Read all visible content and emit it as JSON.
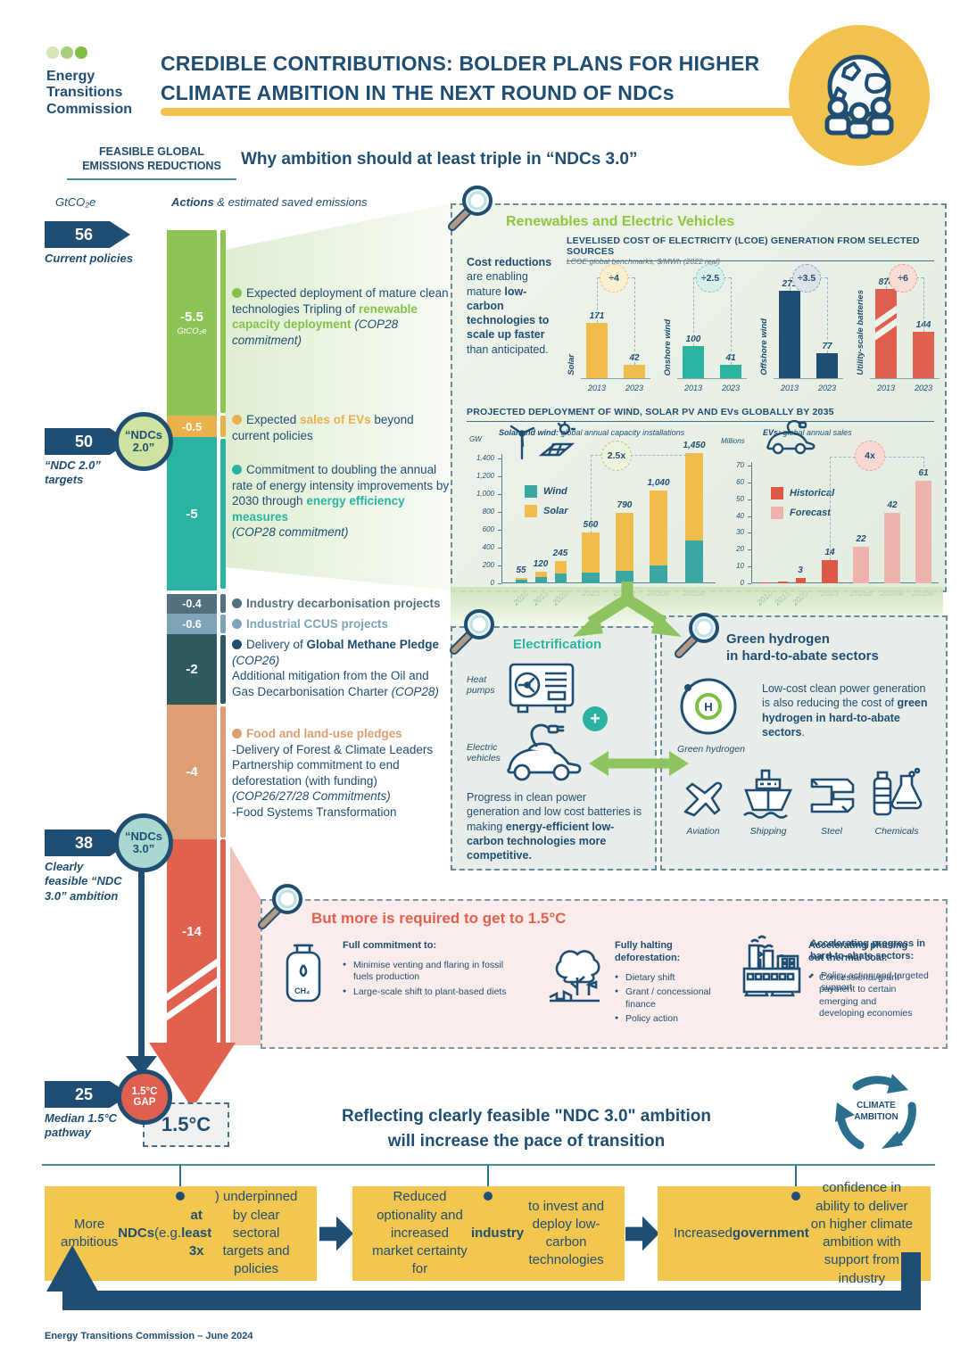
{
  "colors": {
    "navy": "#1f4e72",
    "green": "#84c14b",
    "teal": "#2bb3a2",
    "orange": "#eab04c",
    "slate": "#53707f",
    "bluegray": "#7ea5b7",
    "darkteal": "#2e5a5e",
    "salmon": "#dd9e74",
    "red": "#e2604e",
    "yellow": "#f2c24e"
  },
  "header": {
    "org_lines": [
      "Energy",
      "Transitions",
      "Commission"
    ],
    "title_lines": [
      "CREDIBLE CONTRIBUTIONS: BOLDER PLANS FOR HIGHER",
      "CLIMATE AMBITION IN THE NEXT ROUND OF NDCs"
    ]
  },
  "left_rail": {
    "kicker_lines": [
      "FEASIBLE GLOBAL",
      "EMISSIONS REDUCTIONS"
    ],
    "axis_label": "GtCO₂e",
    "actions_header": [
      {
        "t": "Actions",
        "b": 1,
        "i": 1
      },
      {
        "t": " & estimated saved emissions",
        "i": 1
      }
    ],
    "why_heading": "Why ambition should at least triple in “NDCs 3.0”"
  },
  "waterfall": {
    "chips": [
      {
        "value": "56",
        "label": "Current policies"
      },
      {
        "value": "50",
        "label": "“NDC 2.0” targets"
      },
      {
        "value": "38",
        "label": "Clearly feasible “NDC 3.0” ambition"
      },
      {
        "value": "25",
        "label": "Median 1.5°C pathway"
      }
    ],
    "badges": [
      {
        "line1": "“NDCs",
        "line2": "2.0”",
        "bg": "#cfe3a0"
      },
      {
        "line1": "“NDCs",
        "line2": "3.0”",
        "bg": "#a8d8cf"
      },
      {
        "line1": "1.5°C",
        "line2": "GAP",
        "bg": "#e0604f"
      }
    ],
    "segments": [
      {
        "label": "-5.5",
        "sub": "GtCO₂e",
        "color": "#8cc455"
      },
      {
        "label": "-0.5",
        "color": "#eab04c"
      },
      {
        "label": "-5",
        "color": "#2bb3a2"
      },
      {
        "label": "-0.4",
        "color": "#53707f"
      },
      {
        "label": "-0.6",
        "color": "#7ea5b7"
      },
      {
        "label": "-2",
        "color": "#2e5a5e"
      },
      {
        "label": "-4",
        "color": "#dd9e74"
      },
      {
        "label": "-14",
        "color": "#e2604e"
      }
    ],
    "gap_box_label": "1.5°C",
    "actions": [
      {
        "dot": "#84c14b",
        "runs": [
          {
            "t": "Expected deployment of mature clean technologies Tripling of "
          },
          {
            "t": "renewable capacity deployment",
            "b": 1,
            "c": "#84c14b"
          },
          {
            "t": " "
          },
          {
            "t": "(COP28 commitment)",
            "i": 1
          }
        ]
      },
      {
        "dot": "#eab04c",
        "runs": [
          {
            "t": "Expected "
          },
          {
            "t": "sales of EVs",
            "b": 1,
            "c": "#eab04c"
          },
          {
            "t": " beyond current policies"
          }
        ]
      },
      {
        "dot": "#2bb3a2",
        "runs": [
          {
            "t": "Commitment to doubling the annual rate of energy intensity improvements by 2030 through "
          },
          {
            "t": "energy efficiency measures",
            "b": 1,
            "c": "#2bb3a2"
          },
          {
            "br": 1
          },
          {
            "t": "(COP28 commitment)",
            "i": 1
          }
        ]
      },
      {
        "dot": "#53707f",
        "runs": [
          {
            "t": "Industry decarbonisation projects",
            "b": 1,
            "c": "#53707f"
          }
        ]
      },
      {
        "dot": "#7ea5b7",
        "runs": [
          {
            "t": "Industrial CCUS projects",
            "b": 1,
            "c": "#7ea5b7"
          }
        ]
      },
      {
        "dot": "#1f4e72",
        "runs": [
          {
            "t": "Delivery of "
          },
          {
            "t": "Global Methane Pledge",
            "b": 1
          },
          {
            "t": " "
          },
          {
            "t": "(COP26)",
            "i": 1
          },
          {
            "br": 1
          },
          {
            "t": "Additional mitigation from the Oil and Gas Decarbonisation Charter "
          },
          {
            "t": "(COP28)",
            "i": 1
          }
        ]
      },
      {
        "dot": "#dd9e74",
        "runs": [
          {
            "t": "Food and land-use pledges",
            "b": 1,
            "c": "#dd9e74"
          },
          {
            "br": 1
          },
          {
            "t": "-Delivery of Forest & Climate Leaders Partnership commitment to end deforestation (with funding) "
          },
          {
            "t": "(COP26/27/28 Commitments)",
            "i": 1
          },
          {
            "br": 1
          },
          {
            "t": "-Food Systems Transformation"
          }
        ]
      }
    ]
  },
  "renewables": {
    "title": "Renewables and Electric Vehicles",
    "cost_text": [
      {
        "t": "Cost reductions",
        "b": 1
      },
      {
        "t": " are enabling mature "
      },
      {
        "t": "low-carbon technologies to scale up faster",
        "b": 1
      },
      {
        "t": " than anticipated."
      }
    ],
    "deployment_title": "PROJECTED DEPLOYMENT OF WIND, SOLAR PV AND EVs GLOBALLY BY 2035",
    "ws_subtitle_runs": [
      {
        "t": "Solar and wind:",
        "b": 1,
        "i": 1
      },
      {
        "t": " global annual capacity installations",
        "i": 1
      }
    ],
    "ev_subtitle_runs": [
      {
        "t": "EVs:",
        "b": 1,
        "i": 1
      },
      {
        "t": " global annual sales",
        "i": 1
      }
    ]
  },
  "chart_data": [
    {
      "type": "bar",
      "title": "LEVELISED COST OF ELECTRICITY (LCOE) GENERATION FROM SELECTED SOURCES",
      "subtitle": "LCOE global benchmarks, $/MWh (2022 real)",
      "unit": "$/MWh",
      "x": [
        "2013",
        "2023"
      ],
      "groups": [
        {
          "label": "Solar",
          "values": [
            171,
            42
          ],
          "color": "#f0bd4d",
          "factor": "÷4",
          "badge_bg": "#faf0d0",
          "badge_border": "#e3c878"
        },
        {
          "label": "Onshore wind",
          "values": [
            100,
            41
          ],
          "color": "#2bb3a2",
          "factor": "÷2.5",
          "badge_bg": "#d9efec",
          "badge_border": "#7fc7bd"
        },
        {
          "label": "Offshore wind",
          "values": [
            271,
            77
          ],
          "color": "#1f4e72",
          "factor": "÷3.5",
          "badge_bg": "#dbe3e9",
          "badge_border": "#8ba4b5"
        },
        {
          "label": "Utility-scale batteries",
          "values": [
            878,
            144
          ],
          "color": "#e0604f",
          "factor": "÷6",
          "badge_bg": "#f8dcd6",
          "badge_border": "#e89a8c",
          "broken": true
        }
      ]
    },
    {
      "type": "stacked-bar",
      "subtitle": "Solar and wind: global annual capacity installations",
      "unit": "GW",
      "categories": [
        "2010",
        "2015",
        "2020",
        "2023",
        "2025e",
        "2030e",
        "2035e"
      ],
      "series": [
        {
          "name": "Wind",
          "color": "#3aa7a3",
          "values": [
            35,
            65,
            110,
            115,
            140,
            200,
            475
          ]
        },
        {
          "name": "Solar",
          "color": "#f0bd4d",
          "values": [
            20,
            55,
            135,
            445,
            650,
            840,
            975
          ]
        }
      ],
      "total_labels": [
        "55",
        "120",
        "245",
        "560",
        "790",
        "1,040",
        "1,450"
      ],
      "ylim": [
        0,
        1400
      ],
      "ytick_step": 200,
      "badge": "2.5x",
      "legend_position": "upper-left",
      "grid": false
    },
    {
      "type": "bar",
      "subtitle": "EVs: global annual sales",
      "unit": "Millions",
      "categories": [
        "2010",
        "2015",
        "2020",
        "2023",
        "2025e",
        "2030e",
        "2035e"
      ],
      "values": [
        0.3,
        0.8,
        3,
        14,
        22,
        42,
        61
      ],
      "labels": [
        "",
        "",
        "3",
        "14",
        "22",
        "42",
        "61"
      ],
      "split_index": 4,
      "legend": [
        {
          "name": "Historical",
          "color": "#dd5847"
        },
        {
          "name": "Forecast",
          "color": "#eeb4ab"
        }
      ],
      "ylim": [
        0,
        70
      ],
      "ytick_step": 10,
      "badge": "4x",
      "legend_position": "upper-left",
      "grid": false
    }
  ],
  "electrification": {
    "title": "Electrification",
    "heat_label": "Heat pumps",
    "ev_label": "Electric vehicles",
    "text": [
      {
        "t": "Progress in clean power generation and low cost batteries is making "
      },
      {
        "t": "energy-efficient low-carbon technologies more competitive.",
        "b": 1
      }
    ]
  },
  "hydrogen": {
    "title_lines": [
      "Green hydrogen",
      "in hard-to-abate sectors"
    ],
    "icon_label": "Green hydrogen",
    "text": [
      {
        "t": "Low-cost clean power generation is also reducing the cost of "
      },
      {
        "t": "green hydrogen in hard-to-abate sectors",
        "b": 1
      },
      {
        "t": "."
      }
    ],
    "sectors": [
      "Aviation",
      "Shipping",
      "Steel",
      "Chemicals"
    ]
  },
  "more": {
    "title": "But more is required to get to 1.5°C",
    "groups": [
      {
        "heading": "Full commitment to:",
        "bullets": [
          "Minimise venting and flaring in fossil fuels production",
          "Large-scale shift to plant-based diets"
        ]
      },
      {
        "heading": "Fully halting deforestation:",
        "bullets": [
          "Dietary shift",
          "Grant / concessional finance",
          "Policy action"
        ]
      },
      {
        "heading": "Accelerating phasing out thermal coal:",
        "bullets": [
          "Concessional/grant payment to certain emerging and developing economies"
        ]
      },
      {
        "heading": "Accelerating progress in hard-to-abate sectors:",
        "bullets": [
          "Policy action and targeted support"
        ]
      }
    ]
  },
  "bottom": {
    "heading_lines": [
      "Reflecting clearly feasible \"NDC 3.0\" ambition",
      "will increase the pace of transition"
    ],
    "cycle_lines": [
      "CLIMATE",
      "AMBITION"
    ],
    "boxes": [
      [
        {
          "t": "More ambitious "
        },
        {
          "t": "NDCs",
          "b": 1
        },
        {
          "t": " (e.g. "
        },
        {
          "t": "at least 3x",
          "b": 1
        },
        {
          "t": ") underpinned by clear sectoral targets and policies"
        }
      ],
      [
        {
          "t": "Reduced optionality and increased market certainty for "
        },
        {
          "t": "industry",
          "b": 1
        },
        {
          "t": " to invest and deploy low-carbon technologies"
        }
      ],
      [
        {
          "t": "Increased "
        },
        {
          "t": "government",
          "b": 1
        },
        {
          "t": " confidence in ability to deliver on higher climate ambition with support from industry"
        }
      ]
    ]
  },
  "footer": "Energy Transitions Commission – June 2024"
}
